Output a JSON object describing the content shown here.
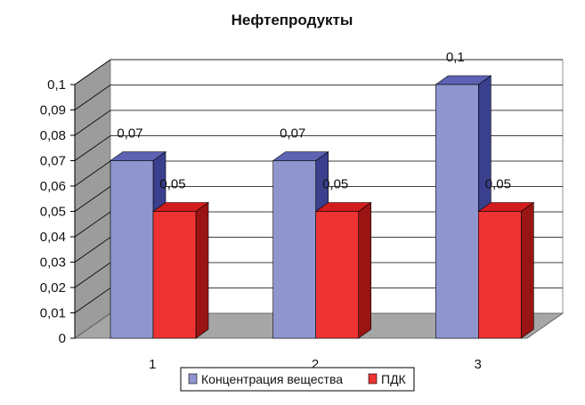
{
  "chart_data": {
    "type": "bar",
    "title": "Нефтепродукты",
    "categories": [
      "1",
      "2",
      "3"
    ],
    "series": [
      {
        "name": "Концентрация вещества",
        "values": [
          0.07,
          0.07,
          0.1
        ],
        "labels": [
          "0,07",
          "0,07",
          "0,1"
        ]
      },
      {
        "name": "ПДК",
        "values": [
          0.05,
          0.05,
          0.05
        ],
        "labels": [
          "0,05",
          "0,05",
          "0,05"
        ]
      }
    ],
    "y_ticks": [
      "0",
      "0,01",
      "0,02",
      "0,03",
      "0,04",
      "0,05",
      "0,06",
      "0,07",
      "0,08",
      "0,09",
      "0,1"
    ],
    "ylim": [
      0,
      0.1
    ],
    "grid": true,
    "legend_position": "bottom",
    "style": "3d",
    "colors": {
      "series_fill": [
        "#8f96cf",
        "#ee3333"
      ],
      "series_side": [
        "#3a3f8e",
        "#9a1414"
      ],
      "series_top": [
        "#5d63b2",
        "#d11d1d"
      ],
      "floor": "#a6a6a6",
      "wall": "#ffffff",
      "side_wall": "#9c9c9c",
      "grid": "#000000"
    }
  }
}
